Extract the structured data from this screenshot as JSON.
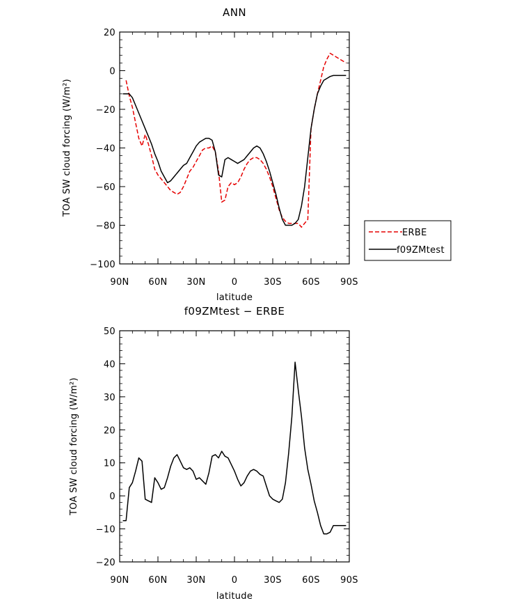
{
  "chart_data": [
    {
      "type": "line",
      "title": "ANN",
      "xlabel": "latitude",
      "ylabel": "TOA SW cloud forcing (W/m²)",
      "xlim": [
        90,
        -90
      ],
      "ylim": [
        -100,
        20
      ],
      "x_tick_values": [
        90,
        60,
        30,
        0,
        -30,
        -60,
        -90
      ],
      "x_tick_labels": [
        "90N",
        "60N",
        "30N",
        "0",
        "30S",
        "60S",
        "90S"
      ],
      "y_tick_values": [
        -100,
        -80,
        -60,
        -40,
        -20,
        0,
        20
      ],
      "y_tick_labels": [
        "−100",
        "−80",
        "−60",
        "−40",
        "−20",
        "0",
        "20"
      ],
      "legend_position": "outside-right",
      "series": [
        {
          "name": "ERBE",
          "color": "#e60000",
          "dash": "dashed",
          "x": [
            85,
            82.5,
            80,
            77.5,
            75,
            72.5,
            70,
            67.5,
            65,
            62.5,
            60,
            57.5,
            55,
            52.5,
            50,
            47.5,
            45,
            42.5,
            40,
            37.5,
            35,
            32.5,
            30,
            27.5,
            25,
            22.5,
            20,
            17.5,
            15,
            12.5,
            10,
            7.5,
            5,
            2.5,
            0,
            -2.5,
            -5,
            -7.5,
            -10,
            -12.5,
            -15,
            -17.5,
            -20,
            -22.5,
            -25,
            -27.5,
            -30,
            -32.5,
            -35,
            -37.5,
            -40,
            -42.5,
            -45,
            -47.5,
            -50,
            -52.5,
            -55,
            -57.5,
            -60,
            -62.5,
            -65,
            -67.5,
            -70,
            -72.5,
            -75,
            -77.5,
            -80,
            -82.5,
            -85,
            -87.5
          ],
          "y": [
            -5,
            -13,
            -19,
            -27,
            -35,
            -39,
            -33,
            -38,
            -44,
            -51,
            -54,
            -56,
            -58,
            -60,
            -62,
            -63,
            -64,
            -63,
            -60,
            -56,
            -52,
            -50,
            -47,
            -44,
            -41,
            -40,
            -40,
            -39,
            -42,
            -52,
            -68,
            -67,
            -60,
            -58,
            -59,
            -58,
            -55,
            -51,
            -48,
            -46,
            -45,
            -45,
            -46,
            -48,
            -51,
            -55,
            -60,
            -66,
            -72,
            -76,
            -78,
            -79,
            -79,
            -79,
            -79,
            -81,
            -79,
            -77,
            -30,
            -20,
            -12,
            -5,
            2,
            6,
            9,
            8,
            7,
            6,
            5,
            4
          ]
        },
        {
          "name": "f09ZMtest",
          "color": "#000000",
          "dash": "solid",
          "x": [
            87.5,
            85,
            82.5,
            80,
            77.5,
            75,
            72.5,
            70,
            67.5,
            65,
            62.5,
            60,
            57.5,
            55,
            52.5,
            50,
            47.5,
            45,
            42.5,
            40,
            37.5,
            35,
            32.5,
            30,
            27.5,
            25,
            22.5,
            20,
            17.5,
            15,
            12.5,
            10,
            7.5,
            5,
            2.5,
            0,
            -2.5,
            -5,
            -7.5,
            -10,
            -12.5,
            -15,
            -17.5,
            -20,
            -22.5,
            -25,
            -27.5,
            -30,
            -32.5,
            -35,
            -37.5,
            -40,
            -42.5,
            -45,
            -47.5,
            -50,
            -52.5,
            -55,
            -57.5,
            -60,
            -62.5,
            -65,
            -67.5,
            -70,
            -72.5,
            -75,
            -77.5,
            -80,
            -82.5,
            -85,
            -87.5
          ],
          "y": [
            -12,
            -12,
            -12,
            -14,
            -18,
            -22,
            -26,
            -30,
            -34,
            -38,
            -43,
            -47,
            -52,
            -55,
            -58,
            -57,
            -55,
            -53,
            -51,
            -49,
            -48,
            -45,
            -42,
            -39,
            -37,
            -36,
            -35,
            -35,
            -36,
            -42,
            -54,
            -55,
            -46,
            -45,
            -46,
            -47,
            -48,
            -47,
            -46,
            -44,
            -42,
            -40,
            -39,
            -40,
            -43,
            -47,
            -52,
            -58,
            -64,
            -71,
            -77,
            -80,
            -80,
            -80,
            -79,
            -77,
            -70,
            -60,
            -45,
            -30,
            -20,
            -12,
            -8,
            -5,
            -4,
            -3,
            -2.5,
            -2.5,
            -2.5,
            -2.5,
            -2.5
          ]
        }
      ]
    },
    {
      "type": "line",
      "title": "f09ZMtest − ERBE",
      "xlabel": "latitude",
      "ylabel": "TOA SW cloud forcing (W/m²)",
      "xlim": [
        90,
        -90
      ],
      "ylim": [
        -20,
        50
      ],
      "x_tick_values": [
        90,
        60,
        30,
        0,
        -30,
        -60,
        -90
      ],
      "x_tick_labels": [
        "90N",
        "60N",
        "30N",
        "0",
        "30S",
        "60S",
        "90S"
      ],
      "y_tick_values": [
        -20,
        -10,
        0,
        10,
        20,
        30,
        40,
        50
      ],
      "y_tick_labels": [
        "−20",
        "−10",
        "0",
        "10",
        "20",
        "30",
        "40",
        "50"
      ],
      "series": [
        {
          "color": "#000000",
          "dash": "solid",
          "x": [
            87.5,
            85,
            82.5,
            80,
            77.5,
            75,
            72.5,
            70,
            67.5,
            65,
            62.5,
            60,
            57.5,
            55,
            52.5,
            50,
            47.5,
            45,
            42.5,
            40,
            37.5,
            35,
            32.5,
            30,
            27.5,
            25,
            22.5,
            20,
            17.5,
            15,
            12.5,
            10,
            7.5,
            5,
            2.5,
            0,
            -2.5,
            -5,
            -7.5,
            -10,
            -12.5,
            -15,
            -17.5,
            -20,
            -22.5,
            -25,
            -27.5,
            -30,
            -32.5,
            -35,
            -37.5,
            -40,
            -42.5,
            -45,
            -47.5,
            -50,
            -52.5,
            -55,
            -57.5,
            -60,
            -62.5,
            -65,
            -67.5,
            -70,
            -72.5,
            -75,
            -77.5,
            -80,
            -82.5,
            -85,
            -87.5
          ],
          "y": [
            -7.5,
            -7.5,
            2.5,
            4,
            7.5,
            11.5,
            10.5,
            -1,
            -1.5,
            -2,
            5.5,
            4,
            2,
            2.5,
            5.5,
            9,
            11.5,
            12.5,
            10.5,
            8.5,
            8,
            8.5,
            7.5,
            5,
            5.5,
            4.5,
            3.5,
            7,
            12,
            12.5,
            11.5,
            13.5,
            12,
            11.5,
            9.5,
            7.5,
            5,
            3,
            4,
            6,
            7.5,
            8,
            7.5,
            6.5,
            6,
            3,
            0,
            -1,
            -1.5,
            -2,
            -1,
            4,
            13,
            24,
            40.5,
            32,
            24,
            14.5,
            8,
            3.5,
            -1.5,
            -5,
            -9,
            -11.5,
            -11.5,
            -11,
            -9,
            -9,
            -9,
            -9,
            -9
          ]
        }
      ]
    }
  ]
}
